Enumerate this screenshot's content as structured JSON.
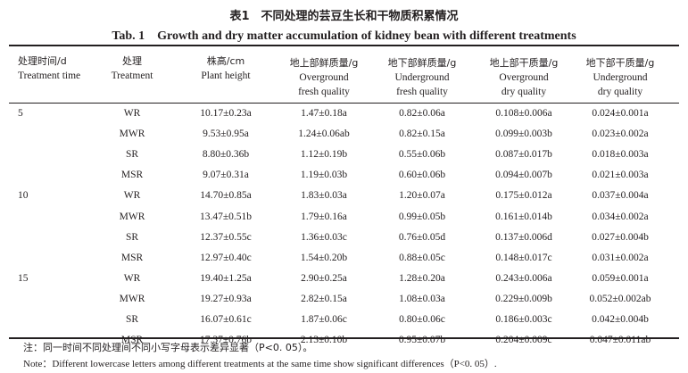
{
  "title_cn": "表1　不同处理的芸豆生长和干物质积累情况",
  "title_en": "Tab. 1　Growth and dry matter accumulation of kidney bean with different treatments",
  "headers": [
    {
      "cn": "处理时间/d",
      "en": [
        "Treatment time"
      ]
    },
    {
      "cn": "处理",
      "en": [
        "Treatment"
      ]
    },
    {
      "cn": "株高/cm",
      "en": [
        "Plant height"
      ]
    },
    {
      "cn": "地上部鲜质量/g",
      "en": [
        "Overground",
        "fresh quality"
      ]
    },
    {
      "cn": "地下部鲜质量/g",
      "en": [
        "Underground",
        "fresh quality"
      ]
    },
    {
      "cn": "地上部干质量/g",
      "en": [
        "Overground",
        "dry quality"
      ]
    },
    {
      "cn": "地下部干质量/g",
      "en": [
        "Underground",
        "dry quality"
      ]
    }
  ],
  "rows": [
    {
      "time": "5",
      "treatment": "WR",
      "values": [
        "10.17±0.23a",
        "1.47±0.18a",
        "0.82±0.06a",
        "0.108±0.006a",
        "0.024±0.001a"
      ]
    },
    {
      "time": "",
      "treatment": "MWR",
      "values": [
        "9.53±0.95a",
        "1.24±0.06ab",
        "0.82±0.15a",
        "0.099±0.003b",
        "0.023±0.002a"
      ]
    },
    {
      "time": "",
      "treatment": "SR",
      "values": [
        "8.80±0.36b",
        "1.12±0.19b",
        "0.55±0.06b",
        "0.087±0.017b",
        "0.018±0.003a"
      ]
    },
    {
      "time": "",
      "treatment": "MSR",
      "values": [
        "9.07±0.31a",
        "1.19±0.03b",
        "0.60±0.06b",
        "0.094±0.007b",
        "0.021±0.003a"
      ]
    },
    {
      "time": "10",
      "treatment": "WR",
      "values": [
        "14.70±0.85a",
        "1.83±0.03a",
        "1.20±0.07a",
        "0.175±0.012a",
        "0.037±0.004a"
      ]
    },
    {
      "time": "",
      "treatment": "MWR",
      "values": [
        "13.47±0.51b",
        "1.79±0.16a",
        "0.99±0.05b",
        "0.161±0.014b",
        "0.034±0.002a"
      ]
    },
    {
      "time": "",
      "treatment": "SR",
      "values": [
        "12.37±0.55c",
        "1.36±0.03c",
        "0.76±0.05d",
        "0.137±0.006d",
        "0.027±0.004b"
      ]
    },
    {
      "time": "",
      "treatment": "MSR",
      "values": [
        "12.97±0.40c",
        "1.54±0.20b",
        "0.88±0.05c",
        "0.148±0.017c",
        "0.031±0.002a"
      ]
    },
    {
      "time": "15",
      "treatment": "WR",
      "values": [
        "19.40±1.25a",
        "2.90±0.25a",
        "1.28±0.20a",
        "0.243±0.006a",
        "0.059±0.001a"
      ]
    },
    {
      "time": "",
      "treatment": "MWR",
      "values": [
        "19.27±0.93a",
        "2.82±0.15a",
        "1.08±0.03a",
        "0.229±0.009b",
        "0.052±0.002ab"
      ]
    },
    {
      "time": "",
      "treatment": "SR",
      "values": [
        "16.07±0.61c",
        "1.87±0.06c",
        "0.80±0.06c",
        "0.186±0.003c",
        "0.042±0.004b"
      ]
    },
    {
      "time": "",
      "treatment": "MSR",
      "values": [
        "17.37±0.76b",
        "2.13±0.10b",
        "0.95±0.07b",
        "0.204±0.009c",
        "0.047±0.011ab"
      ]
    }
  ],
  "note_cn": "注：同一时间不同处理间不同小写字母表示差异显著（P<0. 05）。",
  "note_en": "Note：Different lowercase letters among different treatments at the same time show significant differences（P<0. 05）."
}
